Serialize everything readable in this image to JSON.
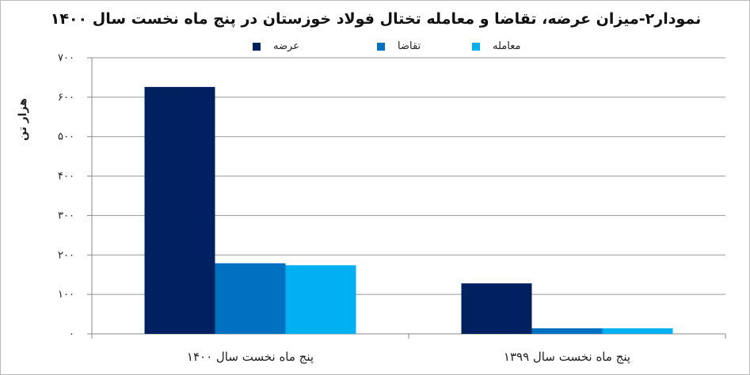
{
  "chart_data": {
    "type": "bar",
    "title": "نمودار۲-میزان عرضه، تقاضا و معامله تختال فولاد خوزستان در پنج ماه نخست سال ۱۴۰۰",
    "ylabel": "هزار تن",
    "xlabel": "",
    "ylim": [
      0,
      700
    ],
    "yticks": [
      0,
      100,
      200,
      300,
      400,
      500,
      600,
      700
    ],
    "ytick_labels": [
      "۰",
      "۱۰۰",
      "۲۰۰",
      "۳۰۰",
      "۴۰۰",
      "۵۰۰",
      "۶۰۰",
      "۷۰۰"
    ],
    "grid": true,
    "legend_position": "top",
    "categories": [
      "پنج ماه نخست سال ۱۴۰۰",
      "پنج ماه نخست سال ۱۳۹۹"
    ],
    "series": [
      {
        "name": "عرضه",
        "color": "#002060",
        "values": [
          626,
          128
        ]
      },
      {
        "name": "تقاضا",
        "color": "#0070C0",
        "values": [
          179,
          14
        ]
      },
      {
        "name": "معامله",
        "color": "#00B0F0",
        "values": [
          174,
          14
        ]
      }
    ]
  }
}
